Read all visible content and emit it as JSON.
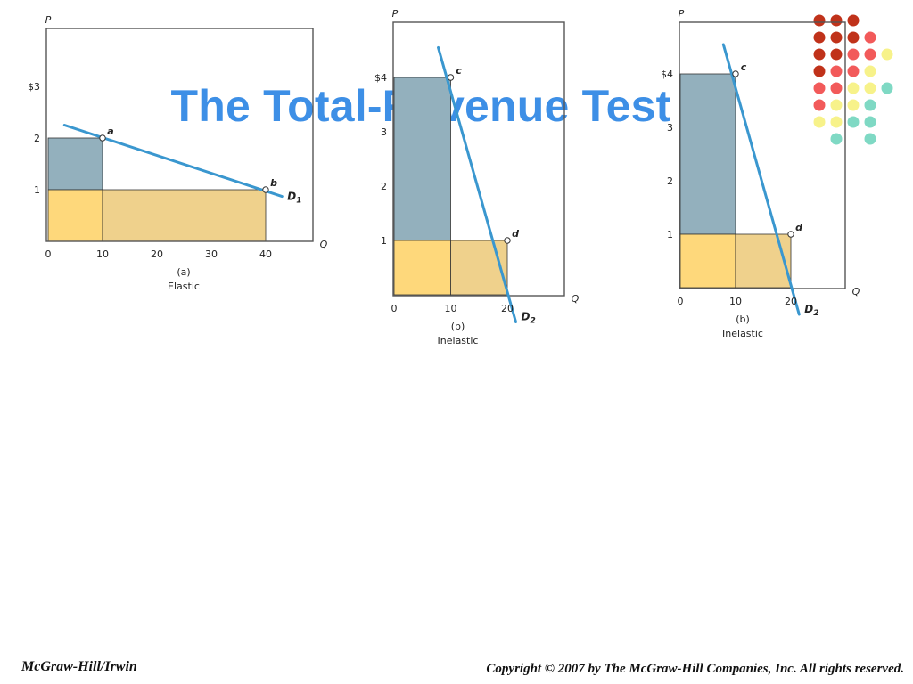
{
  "slide": {
    "title": "The Total-Revenue Test"
  },
  "footer": {
    "left": "McGraw-Hill/Irwin",
    "right": "Copyright © 2007 by The McGraw-Hill Companies, Inc. All rights reserved."
  },
  "decoration": {
    "dot_palette": [
      "#c0321a",
      "#f25a5a",
      "#f7f28a",
      "#7fd9c4"
    ],
    "dot_rows": [
      [
        0,
        0,
        0
      ],
      [
        0,
        0,
        0,
        1
      ],
      [
        0,
        0,
        1,
        1,
        2
      ],
      [
        0,
        1,
        1,
        2
      ],
      [
        1,
        1,
        2,
        2,
        3
      ],
      [
        1,
        2,
        2,
        3
      ],
      [
        2,
        2,
        3,
        3
      ],
      [
        null,
        3,
        null,
        3
      ]
    ]
  },
  "colors": {
    "demand_line": "#3a97cf",
    "upper_area": "#93b0bd",
    "lower_left_area": "#fed87b",
    "lower_right_area": "#efd18c",
    "frame": "#555555"
  },
  "chart_data": [
    {
      "type": "line",
      "y_axis_label": "P",
      "x_axis_label": "Q",
      "xlim": [
        0,
        50
      ],
      "ylim": [
        0,
        4
      ],
      "x_ticks": [
        0,
        10,
        20,
        30,
        40
      ],
      "y_ticks": [
        1,
        2,
        3
      ],
      "y_tick_labels": [
        "1",
        "2",
        "$3"
      ],
      "line": {
        "name": "D1",
        "from": [
          3,
          2.25
        ],
        "to": [
          43,
          0.87
        ]
      },
      "points": [
        {
          "label": "a",
          "x": 10,
          "y": 2
        },
        {
          "label": "b",
          "x": 40,
          "y": 1
        }
      ],
      "areas": [
        {
          "kind": "upper",
          "x0": 0,
          "x1": 10,
          "y0": 1,
          "y1": 2
        },
        {
          "kind": "lower_left",
          "x0": 0,
          "x1": 10,
          "y0": 0,
          "y1": 1
        },
        {
          "kind": "lower_right",
          "x0": 10,
          "x1": 40,
          "y0": 0,
          "y1": 1
        }
      ],
      "caption": "(a)",
      "subcaption": "Elastic"
    },
    {
      "type": "line",
      "y_axis_label": "P",
      "x_axis_label": "Q",
      "xlim": [
        0,
        30
      ],
      "ylim": [
        0,
        5
      ],
      "x_ticks": [
        0,
        10,
        20
      ],
      "y_ticks": [
        1,
        2,
        3,
        4
      ],
      "y_tick_labels": [
        "1",
        "2",
        "3",
        "$4"
      ],
      "line": {
        "name": "D2",
        "from": [
          7.8,
          4.55
        ],
        "to": [
          21.5,
          -0.5
        ]
      },
      "points": [
        {
          "label": "c",
          "x": 10,
          "y": 4
        },
        {
          "label": "d",
          "x": 20,
          "y": 1
        }
      ],
      "areas": [
        {
          "kind": "upper",
          "x0": 0,
          "x1": 10,
          "y0": 1,
          "y1": 4
        },
        {
          "kind": "lower_left",
          "x0": 0,
          "x1": 10,
          "y0": 0,
          "y1": 1
        },
        {
          "kind": "lower_right",
          "x0": 10,
          "x1": 20,
          "y0": 0,
          "y1": 1
        }
      ],
      "caption": "(b)",
      "subcaption": "Inelastic"
    },
    {
      "type": "line",
      "y_axis_label": "P",
      "x_axis_label": "Q",
      "xlim": [
        0,
        30
      ],
      "ylim": [
        0,
        5
      ],
      "x_ticks": [
        0,
        10,
        20
      ],
      "y_ticks": [
        1,
        2,
        3,
        4
      ],
      "y_tick_labels": [
        "1",
        "2",
        "3",
        "$4"
      ],
      "line": {
        "name": "D2",
        "from": [
          7.8,
          4.55
        ],
        "to": [
          21.5,
          -0.5
        ]
      },
      "points": [
        {
          "label": "c",
          "x": 10,
          "y": 4
        },
        {
          "label": "d",
          "x": 20,
          "y": 1
        }
      ],
      "areas": [
        {
          "kind": "upper",
          "x0": 0,
          "x1": 10,
          "y0": 1,
          "y1": 4
        },
        {
          "kind": "lower_left",
          "x0": 0,
          "x1": 10,
          "y0": 0,
          "y1": 1
        },
        {
          "kind": "lower_right",
          "x0": 10,
          "x1": 20,
          "y0": 0,
          "y1": 1
        }
      ],
      "caption": "(b)",
      "subcaption": "Inelastic"
    }
  ]
}
